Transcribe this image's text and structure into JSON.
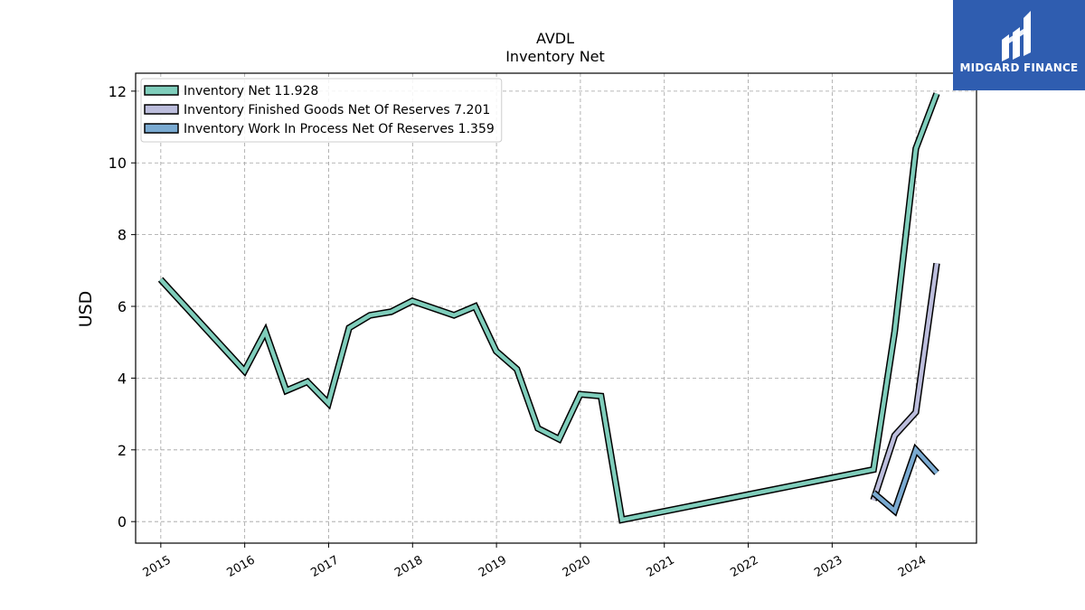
{
  "brand": {
    "name": "MIDGARD FINANCE",
    "icon": "midgard-logo-icon",
    "color": "#2f5db0"
  },
  "chart_data": {
    "type": "line",
    "title": "AVDL",
    "subtitle": "Inventory Net",
    "xlabel": "",
    "ylabel": "USD",
    "xlim": [
      2014.7,
      2024.72
    ],
    "ylim": [
      -0.6,
      12.5
    ],
    "x_ticks": [
      {
        "label": "2015",
        "value": 2015.0
      },
      {
        "label": "2016",
        "value": 2016.0
      },
      {
        "label": "2017",
        "value": 2017.0
      },
      {
        "label": "2018",
        "value": 2018.0
      },
      {
        "label": "2019",
        "value": 2019.0
      },
      {
        "label": "2020",
        "value": 2020.0
      },
      {
        "label": "2021",
        "value": 2021.0
      },
      {
        "label": "2022",
        "value": 2022.0
      },
      {
        "label": "2023",
        "value": 2023.0
      },
      {
        "label": "2024",
        "value": 2024.0
      }
    ],
    "y_ticks": [
      0,
      2,
      4,
      6,
      8,
      10,
      12
    ],
    "grid": true,
    "legend_position": "top-left",
    "series": [
      {
        "name": "Inventory Net",
        "latest_label": "11.928",
        "color": "#7fcdbb",
        "points": [
          [
            "2014-12-31",
            6.75
          ],
          [
            "2015-12-31",
            4.2
          ],
          [
            "2016-03-31",
            5.3
          ],
          [
            "2016-06-30",
            3.65
          ],
          [
            "2016-09-30",
            3.9
          ],
          [
            "2016-12-31",
            3.3
          ],
          [
            "2017-03-31",
            5.4
          ],
          [
            "2017-06-30",
            5.75
          ],
          [
            "2017-09-30",
            5.85
          ],
          [
            "2017-12-31",
            6.15
          ],
          [
            "2018-06-30",
            5.75
          ],
          [
            "2018-09-30",
            6.0
          ],
          [
            "2018-12-31",
            4.75
          ],
          [
            "2019-03-31",
            4.25
          ],
          [
            "2019-06-30",
            2.6
          ],
          [
            "2019-09-30",
            2.3
          ],
          [
            "2019-12-31",
            3.55
          ],
          [
            "2020-03-31",
            3.5
          ],
          [
            "2020-06-30",
            0.05
          ],
          [
            "2023-06-30",
            1.45
          ],
          [
            "2023-09-30",
            5.3
          ],
          [
            "2023-12-31",
            10.4
          ],
          [
            "2024-03-31",
            11.93
          ]
        ]
      },
      {
        "name": "Inventory Finished Goods Net Of Reserves",
        "latest_label": "7.201",
        "color": "#bcbddc",
        "points": [
          [
            "2023-06-30",
            0.6
          ],
          [
            "2023-09-30",
            2.4
          ],
          [
            "2023-12-31",
            3.05
          ],
          [
            "2024-03-31",
            7.2
          ]
        ]
      },
      {
        "name": "Inventory Work In Process Net Of Reserves",
        "latest_label": "1.359",
        "color": "#7aaad1",
        "points": [
          [
            "2023-06-30",
            0.8
          ],
          [
            "2023-09-30",
            0.3
          ],
          [
            "2023-12-31",
            2.0
          ],
          [
            "2024-03-31",
            1.36
          ]
        ]
      }
    ]
  }
}
